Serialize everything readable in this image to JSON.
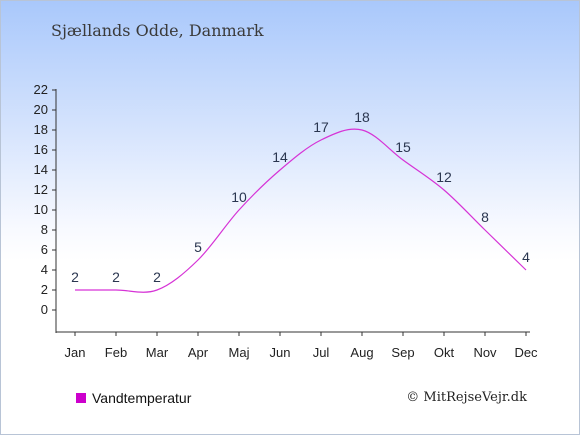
{
  "colors": {
    "line": "#d633d6",
    "axis": "#333333",
    "legend_swatch": "#cc00cc"
  },
  "footer": {
    "copyright": "© MitRejseVejr.dk"
  },
  "chart_data": {
    "type": "line",
    "title": "Sjællands Odde, Danmark",
    "categories": [
      "Jan",
      "Feb",
      "Mar",
      "Apr",
      "Maj",
      "Jun",
      "Jul",
      "Aug",
      "Sep",
      "Okt",
      "Nov",
      "Dec"
    ],
    "series": [
      {
        "name": "Vandtemperatur",
        "values": [
          2,
          2,
          2,
          5,
          10,
          14,
          17,
          18,
          15,
          12,
          8,
          4
        ]
      }
    ],
    "ylim": [
      0,
      22
    ],
    "yticks": [
      0,
      2,
      4,
      6,
      8,
      10,
      12,
      14,
      16,
      18,
      20,
      22
    ],
    "xlabel": "",
    "ylabel": "",
    "grid": false,
    "legend_position": "bottom-left"
  }
}
